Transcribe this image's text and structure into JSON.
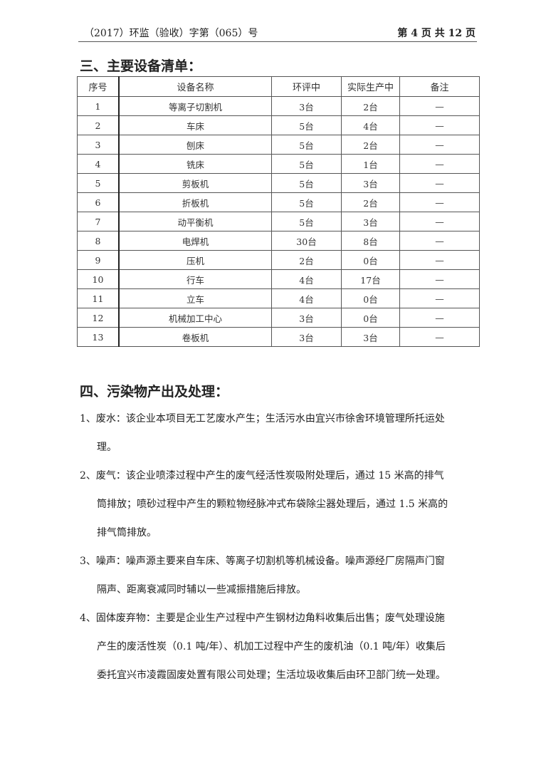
{
  "header": {
    "doc_number": "（2017）环监（验收）字第（065）号",
    "page_info": "第 4 页 共 12 页"
  },
  "section3": {
    "title": "三、主要设备清单：",
    "columns": [
      "序号",
      "设备名称",
      "环评中",
      "实际生产中",
      "备注"
    ],
    "rows": [
      [
        "1",
        "等离子切割机",
        "3台",
        "2台",
        "—"
      ],
      [
        "2",
        "车床",
        "5台",
        "4台",
        "—"
      ],
      [
        "3",
        "刨床",
        "5台",
        "2台",
        "—"
      ],
      [
        "4",
        "铣床",
        "5台",
        "1台",
        "—"
      ],
      [
        "5",
        "剪板机",
        "5台",
        "3台",
        "—"
      ],
      [
        "6",
        "折板机",
        "5台",
        "2台",
        "—"
      ],
      [
        "7",
        "动平衡机",
        "5台",
        "3台",
        "—"
      ],
      [
        "8",
        "电焊机",
        "30台",
        "8台",
        "—"
      ],
      [
        "9",
        "压机",
        "2台",
        "0台",
        "—"
      ],
      [
        "10",
        "行车",
        "4台",
        "17台",
        "—"
      ],
      [
        "11",
        "立车",
        "4台",
        "0台",
        "—"
      ],
      [
        "12",
        "机械加工中心",
        "3台",
        "0台",
        "—"
      ],
      [
        "13",
        "卷板机",
        "3台",
        "3台",
        "—"
      ]
    ]
  },
  "section4": {
    "title": "四、污染物产出及处理：",
    "items": [
      [
        "1、废水：该企业本项目无工艺废水产生；生活污水由宜兴市徐舍环境管理所托运处",
        "理。"
      ],
      [
        "2、废气：该企业喷漆过程中产生的废气经活性炭吸附处理后，通过 15 米高的排气",
        "筒排放；喷砂过程中产生的颗粒物经脉冲式布袋除尘器处理后，通过 1.5 米高的",
        "排气筒排放。"
      ],
      [
        "3、噪声：噪声源主要来自车床、等离子切割机等机械设备。噪声源经厂房隔声门窗",
        "隔声、距离衰减同时辅以一些减振措施后排放。"
      ],
      [
        "4、固体废弃物：主要是企业生产过程中产生钢材边角料收集后出售；废气处理设施",
        "产生的废活性炭（0.1 吨/年）、机加工过程中产生的废机油（0.1 吨/年）收集后",
        "委托宜兴市凌霞固废处置有限公司处理；生活垃圾收集后由环卫部门统一处理。"
      ]
    ]
  }
}
